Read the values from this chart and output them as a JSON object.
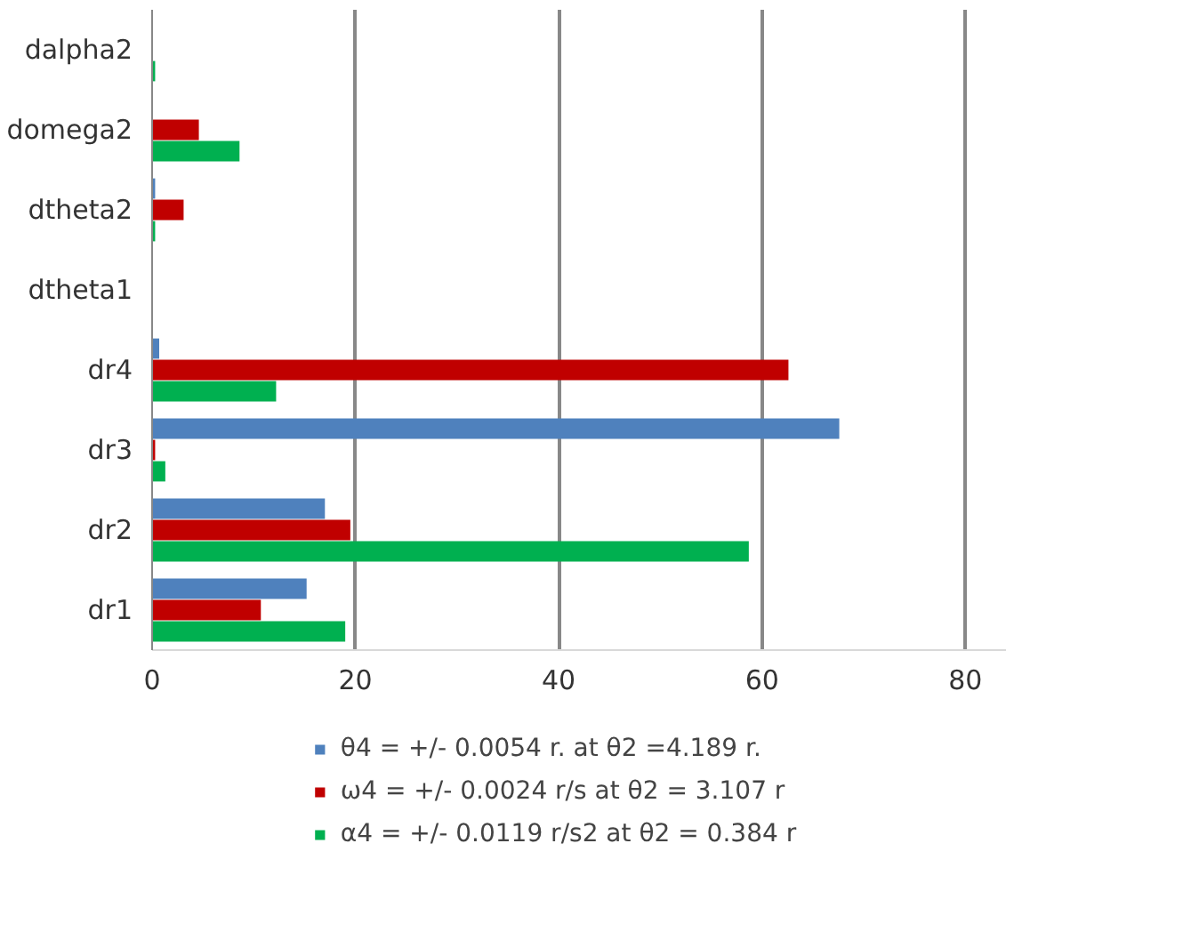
{
  "chart_data": {
    "type": "bar",
    "orientation": "horizontal",
    "categories": [
      "dalpha2",
      "domega2",
      "dtheta2",
      "dtheta1",
      "dr4",
      "dr3",
      "dr2",
      "dr1"
    ],
    "series": [
      {
        "name": "θ4 = +/- 0.0054 r. at θ2 =4.189 r.",
        "color": "#4f81bd",
        "values": [
          0,
          0,
          0.3,
          0,
          0.7,
          67.6,
          17,
          15.2
        ]
      },
      {
        "name": "ω4 = +/- 0.0024 r/s at θ2 = 3.107 r",
        "color": "#c00000",
        "values": [
          0,
          4.6,
          3.1,
          0,
          62.6,
          0.3,
          19.5,
          10.7
        ]
      },
      {
        "name": "α4 = +/- 0.0119 r/s2 at θ2 = 0.384 r",
        "color": "#00b050",
        "values": [
          0.3,
          8.6,
          0.3,
          0,
          12.2,
          1.3,
          58.7,
          19
        ]
      }
    ],
    "xlim": [
      0,
      84
    ],
    "xticks": [
      0,
      20,
      40,
      60,
      80
    ],
    "grid": "x",
    "legend": "bottom"
  }
}
